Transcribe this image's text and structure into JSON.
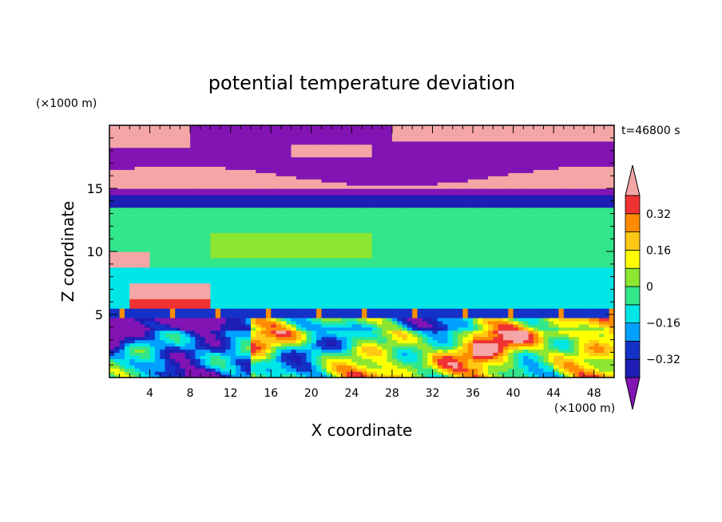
{
  "chart_data": {
    "type": "heatmap",
    "title": "potential temperature deviation",
    "xlabel": "X coordinate",
    "ylabel": "Z coordinate",
    "x_unit": "(×1000 m)",
    "y_unit": "(×1000 m)",
    "time_label": "t=46800 s",
    "xlim": [
      0,
      50
    ],
    "ylim": [
      0,
      20
    ],
    "xticks": [
      4,
      8,
      12,
      16,
      20,
      24,
      28,
      32,
      36,
      40,
      44,
      48
    ],
    "yticks": [
      5,
      10,
      15
    ],
    "colorbar": {
      "levels": [
        -0.4,
        -0.32,
        -0.24,
        -0.16,
        -0.08,
        0,
        0.08,
        0.16,
        0.24,
        0.32,
        0.4
      ],
      "labeled_ticks": [
        0.32,
        0.16,
        0,
        -0.16,
        -0.32
      ],
      "colors_high_to_low": [
        "#f4a6a6",
        "#f03232",
        "#ff8c00",
        "#ffc814",
        "#ffff00",
        "#8ce632",
        "#32e68c",
        "#00e6e6",
        "#00a0ff",
        "#1432c8",
        "#1e1eb4",
        "#8214b4"
      ]
    },
    "field_bands": [
      {
        "z": [
          0,
          4.8
        ],
        "description": "mixed positive and negative values (convective layer)"
      },
      {
        "z": [
          4.8,
          5.6
        ],
        "value": -0.3
      },
      {
        "z": [
          5.6,
          8.8
        ],
        "value": -0.1
      },
      {
        "z": [
          8.8,
          13.5
        ],
        "value": 0.0
      },
      {
        "z": [
          13.5,
          15
        ],
        "value": -0.35
      },
      {
        "z": [
          15,
          17
        ],
        "value": 0.4
      },
      {
        "z": [
          17,
          20
        ],
        "value": -0.4
      }
    ]
  }
}
